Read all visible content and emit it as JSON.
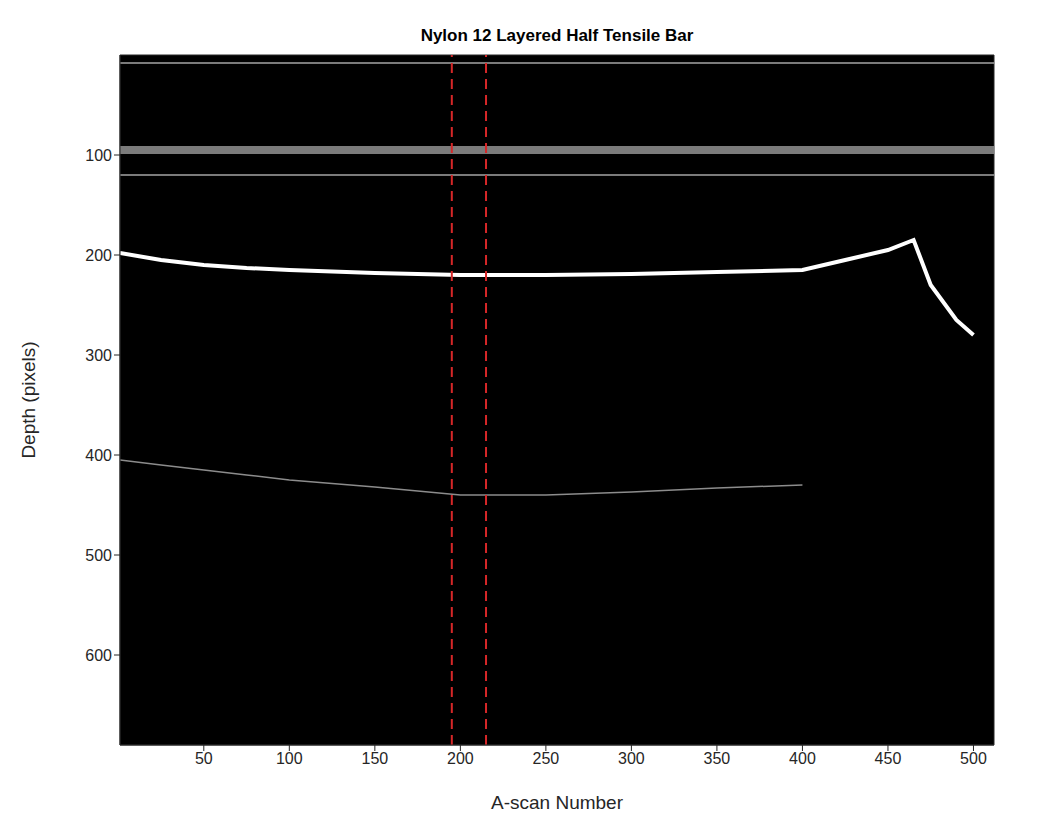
{
  "chart_data": {
    "type": "line",
    "title": "Nylon 12 Layered Half Tensile Bar",
    "x_label": "A-scan Number",
    "y_label": "Depth (pixels)",
    "x": [
      1,
      25,
      50,
      75,
      100,
      150,
      200,
      250,
      300,
      350,
      400,
      425,
      450,
      465,
      475,
      490,
      500,
      512
    ],
    "series": [
      {
        "color": "#ffffff",
        "values": [
          198,
          205,
          210,
          213,
          215,
          218,
          220,
          220,
          219,
          217,
          215,
          205,
          195,
          185,
          230,
          265,
          280,
          null
        ]
      },
      {
        "color": "#8c8c8c",
        "values": [
          405,
          410,
          415,
          420,
          425,
          432,
          440,
          440,
          437,
          433,
          430,
          null,
          null,
          null,
          null,
          null,
          null,
          null
        ]
      }
    ],
    "xlim": [
      1,
      512
    ],
    "ylim": [
      0,
      690
    ],
    "xticks": [
      50,
      100,
      150,
      200,
      250,
      300,
      350,
      400,
      450,
      500
    ],
    "yticks": [
      100,
      200,
      300,
      400,
      500,
      600
    ],
    "vlines": {
      "values": [
        195,
        215
      ],
      "color": "#d62728",
      "line_style": "dashed"
    },
    "hlines": {
      "values": [
        8,
        95,
        120
      ],
      "color": "#9a9a9a"
    },
    "grid": false
  }
}
